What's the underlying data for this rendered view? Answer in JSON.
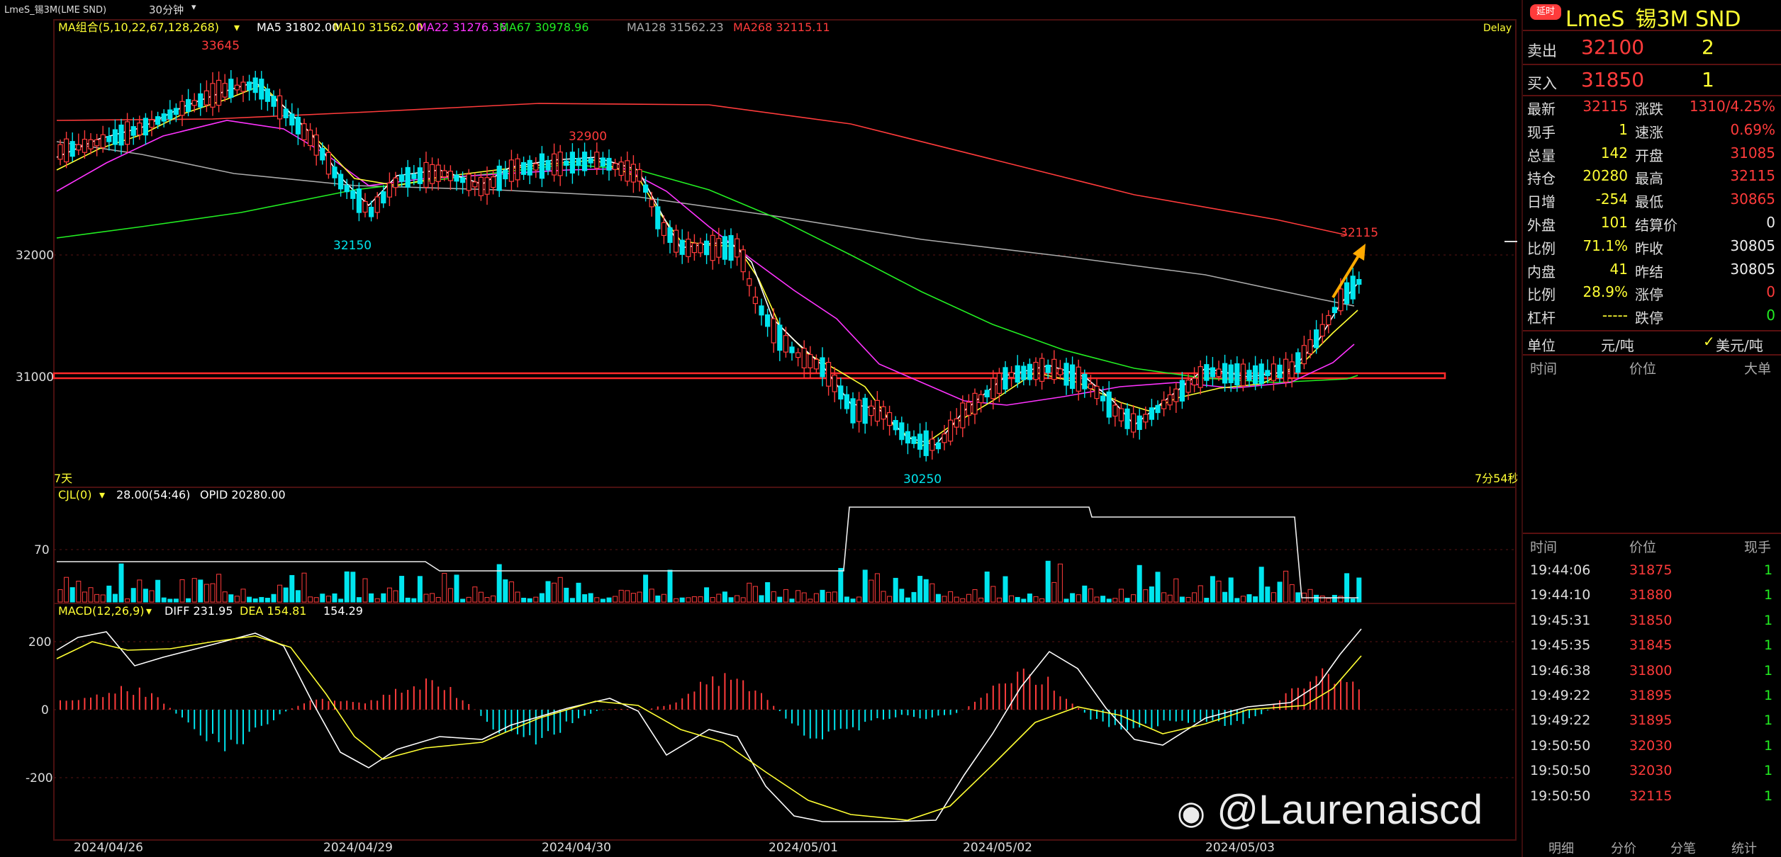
{
  "title_bar": {
    "instrument": "LmeS_锡3M(LME SND)",
    "period": "30分钟",
    "period_arrow": "▾"
  },
  "ma_legend": {
    "group": "MA组合(5,10,22,67,128,268)",
    "ma5": "MA5 31802.00",
    "ma10": "MA10 31562.00",
    "ma22": "MA22 31276.36",
    "ma67": "MA67 30978.96",
    "ma128": "MA128 31562.23",
    "ma268": "MA268 32115.11",
    "delay": "Delay"
  },
  "price_axis": {
    "labels": [
      "32000",
      "31000"
    ]
  },
  "price_annotations": {
    "high_a": "33645",
    "low_a": "32150",
    "high_b": "32900",
    "low_b": "30250",
    "last": "32115"
  },
  "range_left": "7天",
  "range_right": "7分54秒",
  "volume_legend": {
    "name": "CJL(0)",
    "values": "28.00(54:46)",
    "opid": "OPID 20280.00"
  },
  "volume_axis": {
    "labels": [
      "70"
    ]
  },
  "macd_legend": {
    "name": "MACD(12,26,9)",
    "diff": "DIFF 231.95",
    "dea": "DEA 154.81",
    "macd": "154.29"
  },
  "macd_axis": {
    "labels": [
      "200",
      "0",
      "-200"
    ]
  },
  "date_axis": [
    "2024/04/26",
    "2024/04/29",
    "2024/04/30",
    "2024/05/01",
    "2024/05/02",
    "2024/05/03"
  ],
  "panel": {
    "badge": "延时",
    "title": "LmeS_锡3M  SND",
    "ask_label": "卖出",
    "ask_price": "32100",
    "ask_qty": "2",
    "bid_label": "买入",
    "bid_price": "31850",
    "bid_qty": "1",
    "stats": [
      {
        "l1": "最新",
        "v1": "32115",
        "c1": "red",
        "l2": "涨跌",
        "v2": "1310/4.25%",
        "c2": "red"
      },
      {
        "l1": "现手",
        "v1": "1",
        "c1": "yel",
        "l2": "速涨",
        "v2": "0.69%",
        "c2": "red"
      },
      {
        "l1": "总量",
        "v1": "142",
        "c1": "yel",
        "l2": "开盘",
        "v2": "31085",
        "c2": "red"
      },
      {
        "l1": "持仓",
        "v1": "20280",
        "c1": "yel",
        "l2": "最高",
        "v2": "32115",
        "c2": "red"
      },
      {
        "l1": "日增",
        "v1": "-254",
        "c1": "yel",
        "l2": "最低",
        "v2": "30865",
        "c2": "red"
      },
      {
        "l1": "外盘",
        "v1": "101",
        "c1": "yel",
        "l2": "结算价",
        "v2": "0",
        "c2": "wht"
      },
      {
        "l1": "比例",
        "v1": "71.1%",
        "c1": "yel",
        "l2": "昨收",
        "v2": "30805",
        "c2": "wht"
      },
      {
        "l1": "内盘",
        "v1": "41",
        "c1": "yel",
        "l2": "昨结",
        "v2": "30805",
        "c2": "wht"
      },
      {
        "l1": "比例",
        "v1": "28.9%",
        "c1": "yel",
        "l2": "涨停",
        "v2": "0",
        "c2": "red"
      },
      {
        "l1": "杠杆",
        "v1": "-----",
        "c1": "yel",
        "l2": "跌停",
        "v2": "0",
        "c2": "grn"
      }
    ],
    "unit_label": "单位",
    "unit_value": "元/吨",
    "unit_option": "美元/吨",
    "unit_check": "✓",
    "top_headers": {
      "time": "时间",
      "price": "价位",
      "big": "大单"
    },
    "tick_headers": {
      "time": "时间",
      "price": "价位",
      "qty": "现手"
    },
    "ticks": [
      {
        "time": "19:44:06",
        "price": "31875",
        "qty": "1"
      },
      {
        "time": "19:44:10",
        "price": "31880",
        "qty": "1"
      },
      {
        "time": "19:45:31",
        "price": "31850",
        "qty": "1"
      },
      {
        "time": "19:45:35",
        "price": "31845",
        "qty": "1"
      },
      {
        "time": "19:46:38",
        "price": "31800",
        "qty": "1"
      },
      {
        "time": "19:49:22",
        "price": "31895",
        "qty": "1"
      },
      {
        "time": "19:49:22",
        "price": "31895",
        "qty": "1"
      },
      {
        "time": "19:50:50",
        "price": "32030",
        "qty": "1"
      },
      {
        "time": "19:50:50",
        "price": "32030",
        "qty": "1"
      },
      {
        "time": "19:50:50",
        "price": "32115",
        "qty": "1"
      }
    ],
    "tabs": [
      "明细",
      "分价",
      "分笔",
      "统计"
    ]
  },
  "watermark": "@Laurenaiscd",
  "colors": {
    "up": "#ff3b3b",
    "down": "#00e5ee",
    "ma5": "#ffffff",
    "ma10": "#ffff33",
    "ma22": "#ff33ff",
    "ma67": "#22ee22",
    "ma128": "#aaaaaa",
    "ma268": "#ff3b3b"
  }
}
